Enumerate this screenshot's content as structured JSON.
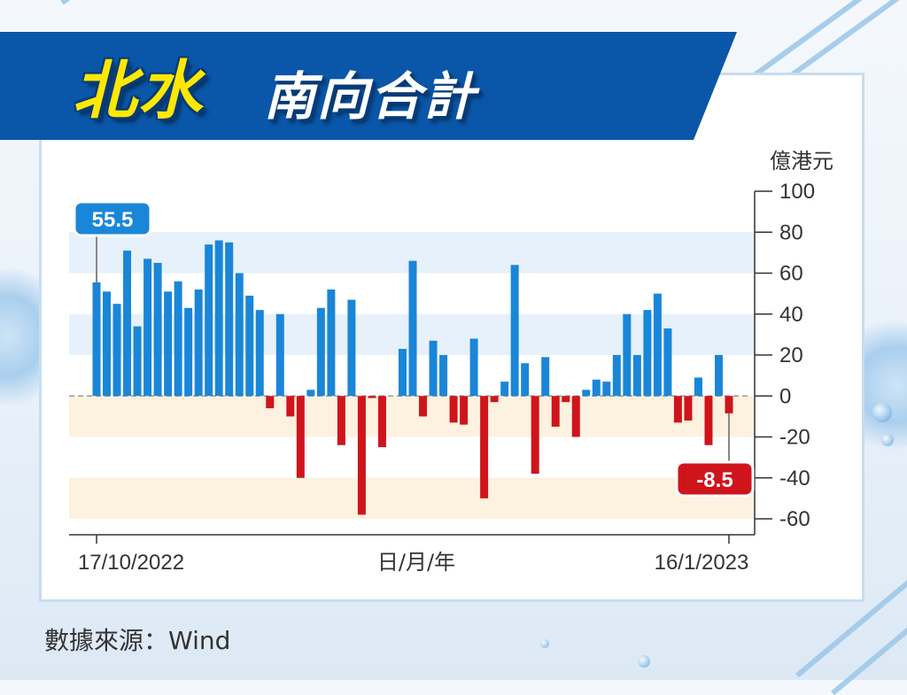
{
  "header": {
    "title_highlight": "北水",
    "title_rest": "南向合計"
  },
  "source": "數據來源：Wind",
  "colors": {
    "positive": "#1a86d8",
    "negative": "#d0141c",
    "banner": "#0a56a8",
    "title_highlight": "#ffe800"
  },
  "chart_data": {
    "type": "bar",
    "unit_label": "億港元",
    "xlabel": "日/月/年",
    "x_start_label": "17/10/2022",
    "x_end_label": "16/1/2023",
    "ylim": [
      -60,
      100
    ],
    "yticks": [
      100,
      80,
      60,
      40,
      20,
      0,
      -20,
      -40,
      -60
    ],
    "values": [
      55.5,
      51,
      45,
      71,
      34,
      67,
      65,
      51,
      56,
      43,
      52,
      74,
      76,
      75,
      60,
      49,
      42,
      -6,
      40,
      -10,
      -40,
      3,
      43,
      52,
      -24,
      47,
      -58,
      -1,
      -25,
      null,
      23,
      66,
      -10,
      27,
      20,
      -13,
      -14,
      28,
      -50,
      -3,
      7,
      64,
      16,
      -38,
      19,
      -15,
      -3,
      -20,
      3,
      8,
      7,
      20,
      40,
      20,
      42,
      50,
      33,
      -13,
      -12,
      9,
      -24,
      20,
      -8.5
    ],
    "callouts": [
      {
        "label": "55.5",
        "index": 0
      },
      {
        "label": "-8.5",
        "index": 62
      }
    ]
  }
}
